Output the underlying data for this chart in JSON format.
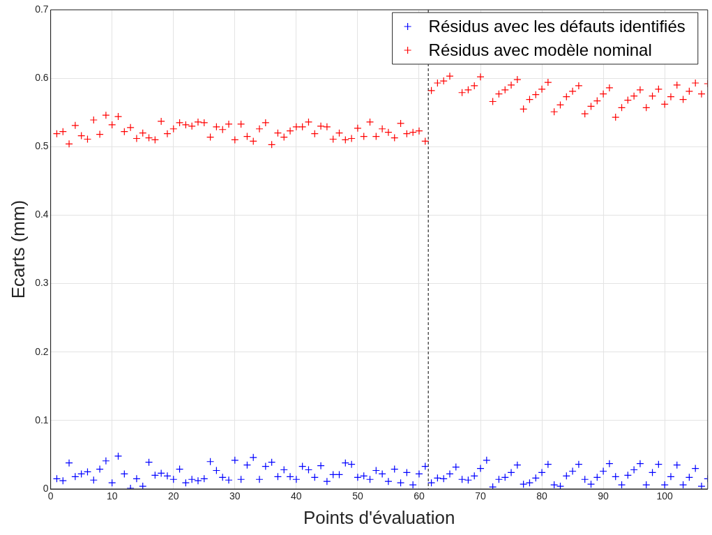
{
  "chart_data": {
    "type": "scatter",
    "xlabel": "Points d'évaluation",
    "ylabel": "Ecarts (mm)",
    "xlim": [
      0,
      107
    ],
    "xticks": [
      0,
      10,
      20,
      30,
      40,
      50,
      60,
      70,
      80,
      90,
      100
    ],
    "ylim": [
      0,
      0.7
    ],
    "yticks": [
      0,
      0.1,
      0.2,
      0.3,
      0.4,
      0.5,
      0.6,
      0.7
    ],
    "grid": true,
    "legend": "top right",
    "marker": "cross",
    "x": [
      1,
      2,
      3,
      4,
      5,
      6,
      7,
      8,
      9,
      10,
      11,
      12,
      13,
      14,
      15,
      16,
      17,
      18,
      19,
      20,
      21,
      22,
      23,
      24,
      25,
      26,
      27,
      28,
      29,
      30,
      31,
      32,
      33,
      34,
      35,
      36,
      37,
      38,
      39,
      40,
      41,
      42,
      43,
      44,
      45,
      46,
      47,
      48,
      49,
      50,
      51,
      52,
      53,
      54,
      55,
      56,
      57,
      58,
      59,
      60,
      61,
      62,
      63,
      64,
      65,
      66,
      67,
      68,
      69,
      70,
      71,
      72,
      73,
      74,
      75,
      76,
      77,
      78,
      79,
      80,
      81,
      82,
      83,
      84,
      85,
      86,
      87,
      88,
      89,
      90,
      91,
      92,
      93,
      94,
      95,
      96,
      97,
      98,
      99,
      100,
      101,
      102,
      103,
      104,
      105,
      106,
      107
    ],
    "series": [
      {
        "name": "Résidus avec les défauts identifiés",
        "color": "#0000ff",
        "values": [
          0.015,
          0.012,
          0.038,
          0.018,
          0.022,
          0.025,
          0.013,
          0.029,
          0.041,
          0.009,
          0.048,
          0.022,
          0.001,
          0.015,
          0.004,
          0.039,
          0.02,
          0.023,
          0.019,
          0.014,
          0.029,
          0.009,
          0.014,
          0.012,
          0.015,
          0.04,
          0.027,
          0.017,
          0.013,
          0.042,
          0.014,
          0.035,
          0.046,
          0.014,
          0.033,
          0.039,
          0.018,
          0.028,
          0.018,
          0.014,
          0.033,
          0.028,
          0.017,
          0.034,
          0.011,
          0.021,
          0.021,
          0.038,
          0.036,
          0.017,
          0.019,
          0.014,
          0.027,
          0.022,
          0.011,
          0.029,
          0.009,
          0.024,
          0.006,
          0.022,
          0.033,
          0.009,
          0.016,
          0.015,
          0.022,
          0.032,
          0.014,
          0.013,
          0.019,
          0.03,
          0.042,
          0.003,
          0.014,
          0.017,
          0.024,
          0.035,
          0.007,
          0.009,
          0.016,
          0.024,
          0.036,
          0.006,
          0.004,
          0.019,
          0.026,
          0.036,
          0.014,
          0.007,
          0.017,
          0.026,
          0.037,
          0.018,
          0.006,
          0.02,
          0.028,
          0.037,
          0.006,
          0.024,
          0.036,
          0.006,
          0.018,
          0.035,
          0.006,
          0.017,
          0.03,
          0.004,
          0.015
        ]
      },
      {
        "name": "Résidus avec modèle nominal",
        "color": "#ff0000",
        "values": [
          0.519,
          0.522,
          0.504,
          0.531,
          0.516,
          0.511,
          0.539,
          0.518,
          0.546,
          0.532,
          0.544,
          0.522,
          0.528,
          0.512,
          0.52,
          0.513,
          0.51,
          0.537,
          0.519,
          0.526,
          0.535,
          0.532,
          0.53,
          0.536,
          0.535,
          0.514,
          0.529,
          0.525,
          0.533,
          0.51,
          0.533,
          0.515,
          0.508,
          0.526,
          0.535,
          0.503,
          0.52,
          0.514,
          0.523,
          0.529,
          0.529,
          0.536,
          0.519,
          0.53,
          0.529,
          0.511,
          0.52,
          0.51,
          0.512,
          0.527,
          0.515,
          0.536,
          0.515,
          0.526,
          0.521,
          0.513,
          0.534,
          0.519,
          0.521,
          0.523,
          0.508,
          0.582,
          0.593,
          0.596,
          0.603,
          null,
          0.579,
          0.583,
          0.589,
          0.602,
          null,
          0.566,
          0.577,
          0.583,
          0.59,
          0.598,
          0.555,
          0.569,
          0.576,
          0.584,
          0.594,
          0.551,
          0.561,
          0.573,
          0.581,
          0.589,
          0.548,
          0.559,
          0.567,
          0.577,
          0.586,
          0.543,
          0.557,
          0.568,
          0.574,
          0.583,
          0.557,
          0.574,
          0.584,
          0.562,
          0.573,
          0.59,
          0.569,
          0.581,
          0.593,
          0.577,
          0.592
        ]
      }
    ],
    "ref_lines": [
      {
        "axis": "x",
        "value": 61.5,
        "color": "#000000",
        "line_style": "dashed"
      }
    ]
  }
}
